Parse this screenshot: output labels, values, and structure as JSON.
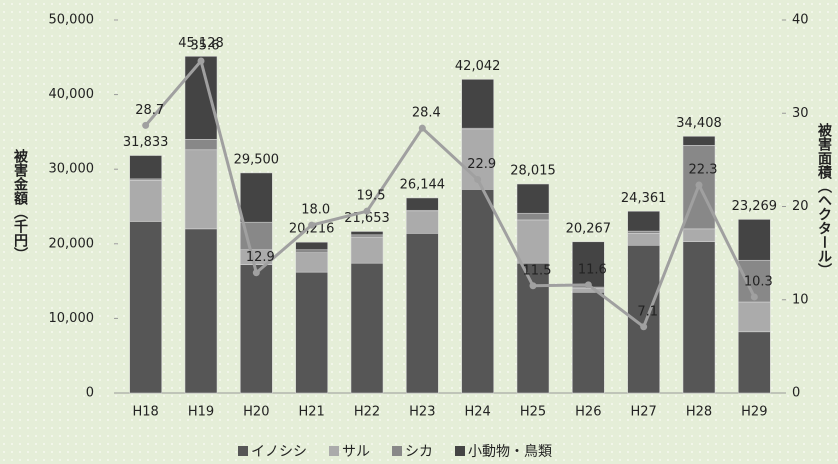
{
  "chart_data": {
    "type": "stacked-bar-line",
    "categories": [
      "H18",
      "H19",
      "H20",
      "H21",
      "H22",
      "H23",
      "H24",
      "H25",
      "H26",
      "H27",
      "H28",
      "H29"
    ],
    "series": [
      {
        "name": "イノシシ",
        "color": "#565656",
        "values": [
          23000,
          22000,
          17200,
          16200,
          17400,
          21400,
          27300,
          17400,
          13500,
          19800,
          20300,
          8200
        ]
      },
      {
        "name": "サル",
        "color": "#ababab",
        "values": [
          5500,
          10600,
          2000,
          2600,
          3500,
          2900,
          8000,
          5800,
          500,
          1600,
          1700,
          4000
        ]
      },
      {
        "name": "シカ",
        "color": "#888888",
        "values": [
          200,
          1400,
          3700,
          400,
          300,
          200,
          200,
          900,
          200,
          300,
          11200,
          5600
        ]
      },
      {
        "name": "小動物・鳥類",
        "color": "#444444",
        "values": [
          3133,
          11128,
          6600,
          1016,
          453,
          1644,
          6542,
          3915,
          6067,
          2661,
          1208,
          5469
        ]
      }
    ],
    "total_labels": [
      "31,833",
      "45,128",
      "29,500",
      "20,216",
      "21,653",
      "26,144",
      "42,042",
      "28,015",
      "20,267",
      "24,361",
      "34,408",
      "23,269"
    ],
    "line": {
      "axis": "y2",
      "color": "#a0a0a0",
      "values": [
        28.7,
        35.6,
        12.9,
        18.0,
        19.5,
        28.4,
        22.9,
        11.5,
        11.6,
        7.1,
        22.3,
        10.3
      ],
      "value_labels": [
        "28.7",
        "35.6",
        "12.9",
        "18.0",
        "19.5",
        "28.4",
        "22.9",
        "11.5",
        "11.6",
        "7.1",
        "22.3",
        "10.3"
      ]
    },
    "y_label": "被害金額（千円）",
    "y2_label": "被害面積（ヘクタール）",
    "ylim": [
      0,
      50000
    ],
    "yticks": [
      0,
      {
        "value": 10000,
        "label": "10,000"
      },
      {
        "value": 20000,
        "label": "20,000"
      },
      {
        "value": 30000,
        "label": "30,000"
      },
      {
        "value": 40000,
        "label": "40,000"
      },
      {
        "value": 50000,
        "label": "50,000"
      }
    ],
    "y2lim": [
      0,
      40
    ],
    "y2ticks": [
      0,
      10,
      20,
      30,
      40
    ]
  }
}
